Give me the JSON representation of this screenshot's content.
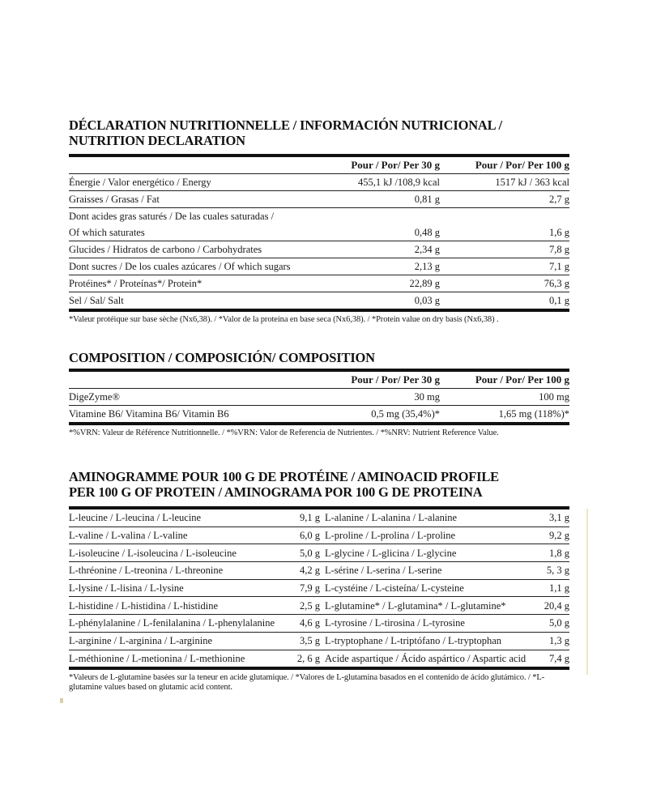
{
  "nutrition": {
    "title_line1": "DÉCLARATION NUTRITIONNELLE / INFORMACIÓN NUTRICIONAL /",
    "title_line2": "NUTRITION DECLARATION",
    "headers": [
      "",
      "Pour / Por/ Per 30 g",
      "Pour / Por/ Per 100 g"
    ],
    "rows": [
      [
        "Énergie /  Valor energético /  Energy",
        "455,1 kJ /108,9 kcal",
        "1517 kJ / 363 kcal"
      ],
      [
        "Graisses / Grasas / Fat",
        "0,81 g",
        "2,7 g"
      ],
      [
        "Dont acides gras saturés / De las cuales saturadas /",
        "",
        ""
      ],
      [
        "Of which saturates",
        "0,48 g",
        "1,6 g"
      ],
      [
        "Glucides / Hidratos de carbono / Carbohydrates",
        "2,34 g",
        "7,8 g"
      ],
      [
        "Dont sucres / De los cuales azúcares / Of which sugars",
        "2,13 g",
        "7,1 g"
      ],
      [
        "Protéines* / Proteínas*/ Protein*",
        "22,89 g",
        "76,3 g"
      ],
      [
        "Sel / Sal/ Salt",
        "0,03 g",
        "0,1 g"
      ]
    ],
    "footnote": "*Valeur protéique sur base sèche (Nx6,38). / *Valor de la proteína en base seca (Nx6,38). / *Protein value on dry basis (Nx6,38) ."
  },
  "composition": {
    "title": "COMPOSITION / COMPOSICIÓN/ COMPOSITION",
    "headers": [
      "",
      "Pour / Por/ Per 30 g",
      "Pour / Por/ Per 100 g"
    ],
    "rows": [
      [
        "DigeZyme®",
        "30 mg",
        "100 mg"
      ],
      [
        "Vitamine B6/ Vitamina B6/ Vitamin B6",
        "0,5 mg (35,4%)*",
        "1,65 mg (118%)*"
      ]
    ],
    "footnote": "*%VRN: Valeur de Référence Nutritionnelle. / *%VRN: Valor de Referencia de Nutrientes. / *%NRV: Nutrient Reference Value."
  },
  "amino": {
    "title_line1": "AMINOGRAMME POUR 100 G DE PROTÉINE / AMINOACID PROFILE",
    "title_line2": "PER 100 G OF PROTEIN / AMINOGRAMA POR 100 G DE PROTEINA",
    "rows": [
      [
        "L-leucine / L-leucina / L-leucine",
        "9,1 g",
        "L-alanine / L-alanina / L-alanine",
        "3,1 g"
      ],
      [
        "L-valine / L-valina / L-valine",
        "6,0 g",
        "L-proline / L-prolina / L-proline",
        "9,2 g"
      ],
      [
        "L-isoleucine / L-isoleucina / L-isoleucine",
        "5,0 g",
        "L-glycine / L-glicina / L-glycine",
        "1,8 g"
      ],
      [
        "L-thréonine / L-treonina / L-threonine",
        "4,2 g",
        "L-sérine / L-serina / L-serine",
        "5, 3 g"
      ],
      [
        "L-lysine / L-lisina / L-lysine",
        "7,9 g",
        "L-cystéine / L-cisteína/ L-cysteine",
        "1,1 g"
      ],
      [
        "L-histidine / L-histidina / L-histidine",
        "2,5 g",
        "L-glutamine* / L-glutamina* / L-glutamine*",
        "20,4  g"
      ],
      [
        "L-phénylalanine / L-fenilalanina / L-phenylalanine",
        "4,6 g",
        "L-tyrosine / L-tirosina / L-tyrosine",
        "5,0 g"
      ],
      [
        "L-arginine / L-arginina / L-arginine",
        "3,5 g",
        "L-tryptophane / L-triptófano / L-tryptophan",
        "1,3 g"
      ],
      [
        "L-méthionine / L-metionina / L-methionine",
        "2, 6 g",
        "Acide aspartique / Ácido aspártico / Aspartic acid",
        "7,4 g"
      ]
    ],
    "footnote": "*Valeurs de L-glutamine basées sur la teneur en acide glutamique. / *Valores de L-glutamina basados en el contenido de ácido glutámico. / *L-glutamine values based on glutamic acid content."
  }
}
